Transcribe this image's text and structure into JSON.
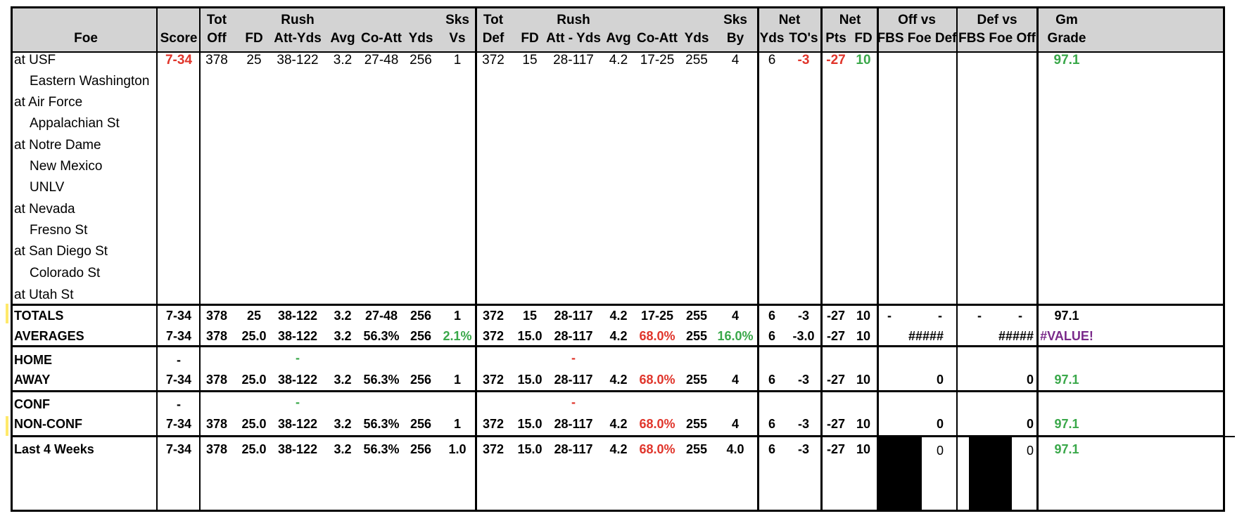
{
  "header": {
    "foe": "Foe",
    "score": "Score",
    "tot_off": [
      "Tot",
      "Off"
    ],
    "fd": "FD",
    "rush": [
      "Rush",
      "Att-Yds"
    ],
    "avg": "Avg",
    "co_att": "Co-Att",
    "yds": "Yds",
    "sks_vs": [
      "Sks",
      "Vs"
    ],
    "tot_def": [
      "Tot",
      "Def"
    ],
    "fd2": "FD",
    "rush2": [
      "Rush",
      "Att - Yds"
    ],
    "avg2": "Avg",
    "co_att2": "Co-Att",
    "yds2": "Yds",
    "sks_by": [
      "Sks",
      "By"
    ],
    "net": "Net",
    "net_yds": "Yds",
    "net_tos": "TO's",
    "net2": "Net",
    "net_pts": "Pts",
    "net_fd": "FD",
    "off_vs": [
      "Off vs",
      "FBS Foe Def"
    ],
    "def_vs": [
      "Def vs",
      "FBS Foe Off"
    ],
    "gm_grade": [
      "Gm",
      "Grade"
    ]
  },
  "games": [
    {
      "foe": "at USF",
      "score": "7-34",
      "tot_off": "378",
      "fd": "25",
      "rush": "38-122",
      "avg": "3.2",
      "co_att": "27-48",
      "yds": "256",
      "sks_vs": "1",
      "tot_def": "372",
      "fd2": "15",
      "rush2": "28-117",
      "avg2": "4.2",
      "co_att2": "17-25",
      "yds2": "255",
      "sks_by": "4",
      "net_yds": "6",
      "net_tos": "-3",
      "net_pts": "-27",
      "net_fd": "10",
      "gm_grade": "97.1"
    },
    {
      "foe": "Eastern Washington"
    },
    {
      "foe": "at Air Force"
    },
    {
      "foe": "Appalachian St"
    },
    {
      "foe": "at Notre Dame"
    },
    {
      "foe": "New Mexico"
    },
    {
      "foe": "UNLV"
    },
    {
      "foe": "at Nevada"
    },
    {
      "foe": "Fresno St"
    },
    {
      "foe": "at San Diego St"
    },
    {
      "foe": "Colorado St"
    },
    {
      "foe": "at Utah St"
    }
  ],
  "totals": {
    "label": "TOTALS",
    "score": "7-34",
    "tot_off": "378",
    "fd": "25",
    "rush": "38-122",
    "avg": "3.2",
    "co_att": "27-48",
    "yds": "256",
    "sks_vs": "1",
    "tot_def": "372",
    "fd2": "15",
    "rush2": "28-117",
    "avg2": "4.2",
    "co_att2": "17-25",
    "yds2": "255",
    "sks_by": "4",
    "net_yds": "6",
    "net_tos": "-3",
    "net_pts": "-27",
    "net_fd": "10",
    "off_a": "-",
    "off_b": "-",
    "def_a": "-",
    "def_b": "-",
    "gm_grade": "97.1"
  },
  "averages": {
    "label": "AVERAGES",
    "score": "7-34",
    "tot_off": "378",
    "fd": "25.0",
    "rush": "38-122",
    "avg": "3.2",
    "co_att": "56.3%",
    "yds": "256",
    "sks_vs": "2.1%",
    "tot_def": "372",
    "fd2": "15.0",
    "rush2": "28-117",
    "avg2": "4.2",
    "co_att2": "68.0%",
    "yds2": "255",
    "sks_by": "16.0%",
    "net_yds": "6",
    "net_tos": "-3.0",
    "net_pts": "-27",
    "net_fd": "10",
    "off_vs": "#####",
    "def_vs": "#####",
    "gm_grade": "#VALUE!"
  },
  "home": {
    "label": "HOME",
    "score": "-",
    "rush": "-",
    "rush2": "-"
  },
  "away": {
    "label": "AWAY",
    "score": "7-34",
    "tot_off": "378",
    "fd": "25.0",
    "rush": "38-122",
    "avg": "3.2",
    "co_att": "56.3%",
    "yds": "256",
    "sks_vs": "1",
    "tot_def": "372",
    "fd2": "15.0",
    "rush2": "28-117",
    "avg2": "4.2",
    "co_att2": "68.0%",
    "yds2": "255",
    "sks_by": "4",
    "net_yds": "6",
    "net_tos": "-3",
    "net_pts": "-27",
    "net_fd": "10",
    "off_vs": "0",
    "def_vs": "0",
    "gm_grade": "97.1"
  },
  "conf": {
    "label": "CONF",
    "score": "-",
    "rush": "-",
    "rush2": "-"
  },
  "nonconf": {
    "label": "NON-CONF",
    "score": "7-34",
    "tot_off": "378",
    "fd": "25.0",
    "rush": "38-122",
    "avg": "3.2",
    "co_att": "56.3%",
    "yds": "256",
    "sks_vs": "1",
    "tot_def": "372",
    "fd2": "15.0",
    "rush2": "28-117",
    "avg2": "4.2",
    "co_att2": "68.0%",
    "yds2": "255",
    "sks_by": "4",
    "net_yds": "6",
    "net_tos": "-3",
    "net_pts": "-27",
    "net_fd": "10",
    "off_vs": "0",
    "def_vs": "0",
    "gm_grade": "97.1"
  },
  "last4": {
    "label": "Last 4 Weeks",
    "score": "7-34",
    "tot_off": "378",
    "fd": "25.0",
    "rush": "38-122",
    "avg": "3.2",
    "co_att": "56.3%",
    "yds": "256",
    "sks_vs": "1.0",
    "tot_def": "372",
    "fd2": "15.0",
    "rush2": "28-117",
    "avg2": "4.2",
    "co_att2": "68.0%",
    "yds2": "255",
    "sks_by": "4.0",
    "net_yds": "6",
    "net_tos": "-3",
    "net_pts": "-27",
    "net_fd": "10",
    "off_vs": "0",
    "def_vs": "0",
    "gm_grade": "97.1"
  },
  "colors": {
    "negative": "#e0352b",
    "positive": "#3aa84a",
    "error": "#7a2a8a",
    "header": "#d3d3d3",
    "highlight": "#ffe96b"
  }
}
